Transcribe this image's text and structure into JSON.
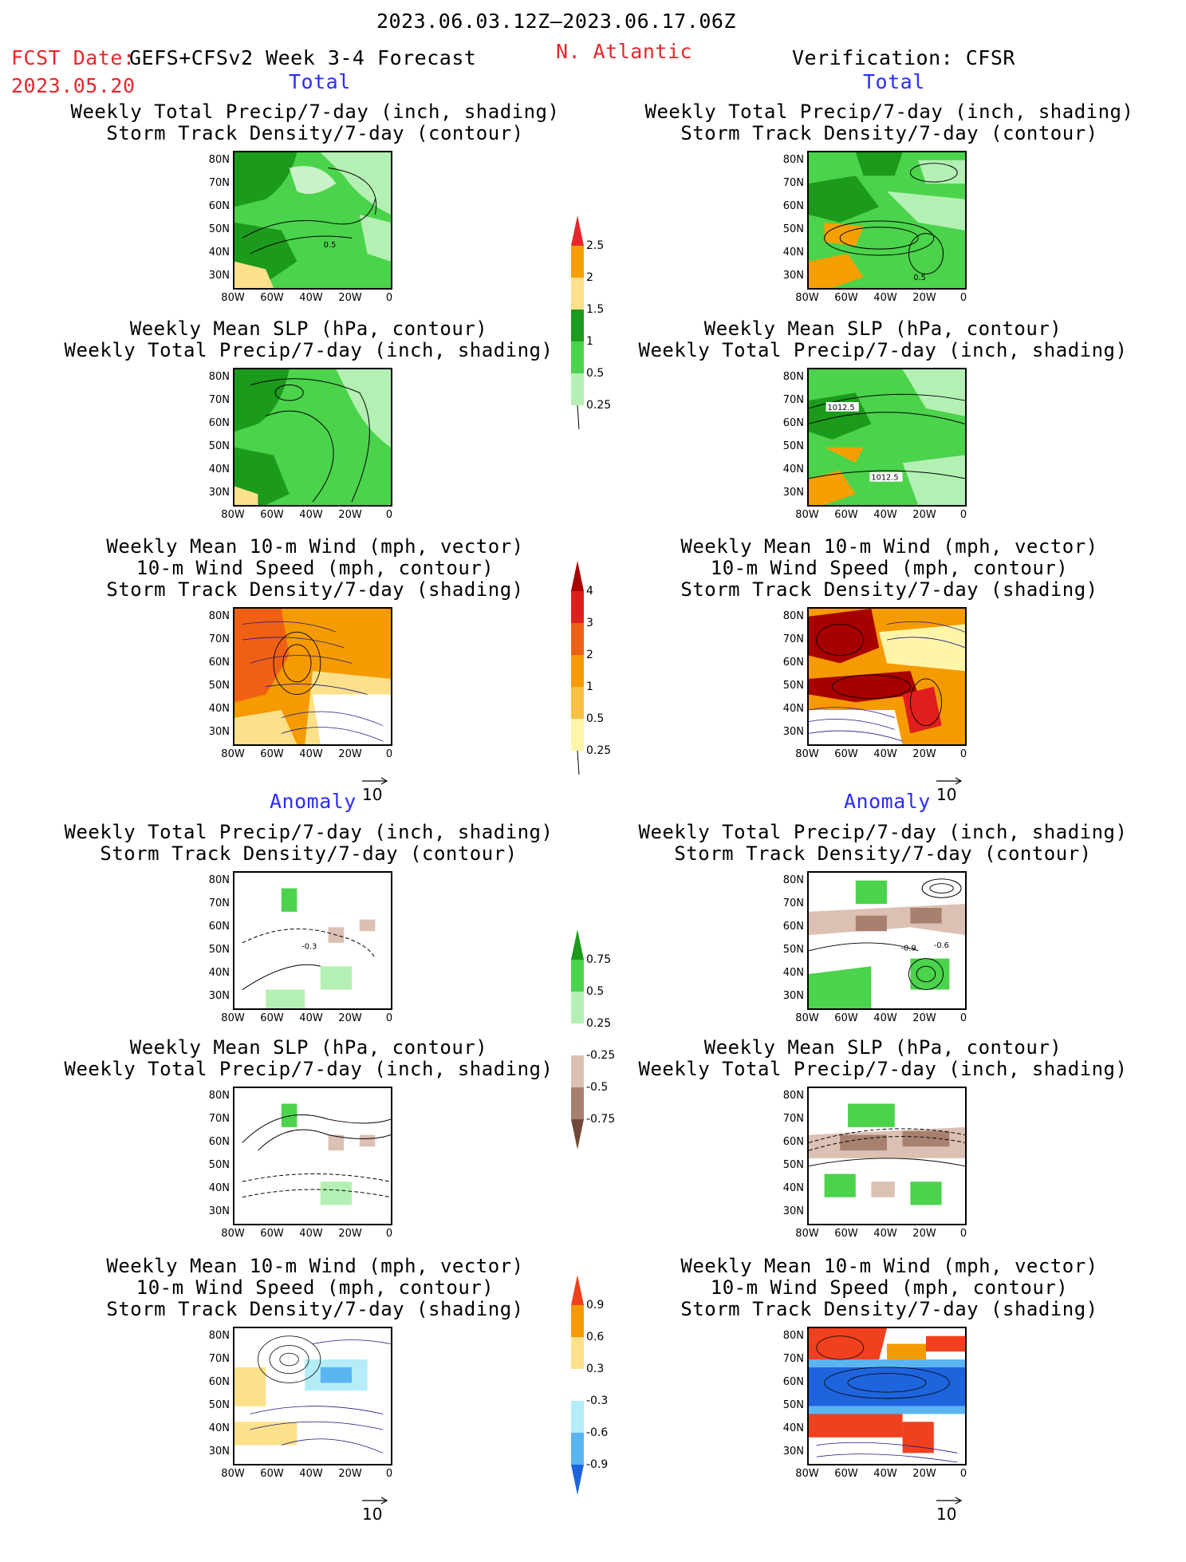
{
  "header": {
    "period": "2023.06.03.12Z–2023.06.17.06Z",
    "fcst_date_label": "FCST Date:",
    "model_label": "GEFS+CFSv2 Week 3-4 Forecast",
    "fcst_date_value": "2023.05.20",
    "region": "N. Atlantic",
    "verification": "Verification: CFSR"
  },
  "sections": {
    "total": "Total",
    "anomaly": "Anomaly"
  },
  "titles": {
    "precip_storm": [
      "Weekly Total Precip/7-day (inch, shading)",
      "Storm Track Density/7-day (contour)"
    ],
    "slp_precip": [
      "Weekly Mean SLP (hPa, contour)",
      "Weekly Total Precip/7-day (inch, shading)"
    ],
    "wind_storm": [
      "Weekly Mean 10-m Wind (mph, vector)",
      "10-m Wind Speed (mph, contour)",
      "Storm Track Density/7-day (shading)"
    ]
  },
  "axes": {
    "lat_ticks": [
      "80N",
      "70N",
      "60N",
      "50N",
      "40N",
      "30N"
    ],
    "lon_ticks": [
      "80W",
      "60W",
      "40W",
      "20W",
      "0"
    ]
  },
  "vector_ref": "10",
  "map_labels": {
    "total_fcst_storm": "0.5",
    "total_obs_storm": "0.5",
    "total_obs_slp_1": "1012.5",
    "total_obs_slp_2": "1012.5",
    "anom_fcst_storm": "-0.3",
    "anom_obs_storm_1": "-0.9",
    "anom_obs_storm_2": "-0.6"
  },
  "colorbars": {
    "total_precip": {
      "labels": [
        "2.5",
        "2",
        "1.5",
        "1",
        "0.5",
        "0.25"
      ],
      "colors": [
        "#e8262a",
        "#f5a000",
        "#fde08a",
        "#1c9a1c",
        "#4bd34b",
        "#b4f0b4"
      ]
    },
    "total_storm": {
      "labels": [
        "4",
        "3",
        "2",
        "1",
        "0.5",
        "0.25"
      ],
      "colors": [
        "#a80000",
        "#e01e1e",
        "#f06014",
        "#f59a00",
        "#f8c040",
        "#fff5a8"
      ]
    },
    "anom_precip": {
      "labels": [
        "0.75",
        "0.5",
        "0.25",
        "-0.25",
        "-0.5",
        "-0.75"
      ],
      "colors": [
        "#1c9a1c",
        "#4bd34b",
        "#b4f0b4",
        "#ffffff",
        "#dcc0b4",
        "#a88070",
        "#704838"
      ]
    },
    "anom_storm": {
      "labels": [
        "0.9",
        "0.6",
        "0.3",
        "-0.3",
        "-0.6",
        "-0.9"
      ],
      "colors": [
        "#f0401e",
        "#f59a00",
        "#fde08a",
        "#ffffff",
        "#b4ecf8",
        "#5ab4f0",
        "#1e64dc"
      ]
    }
  }
}
